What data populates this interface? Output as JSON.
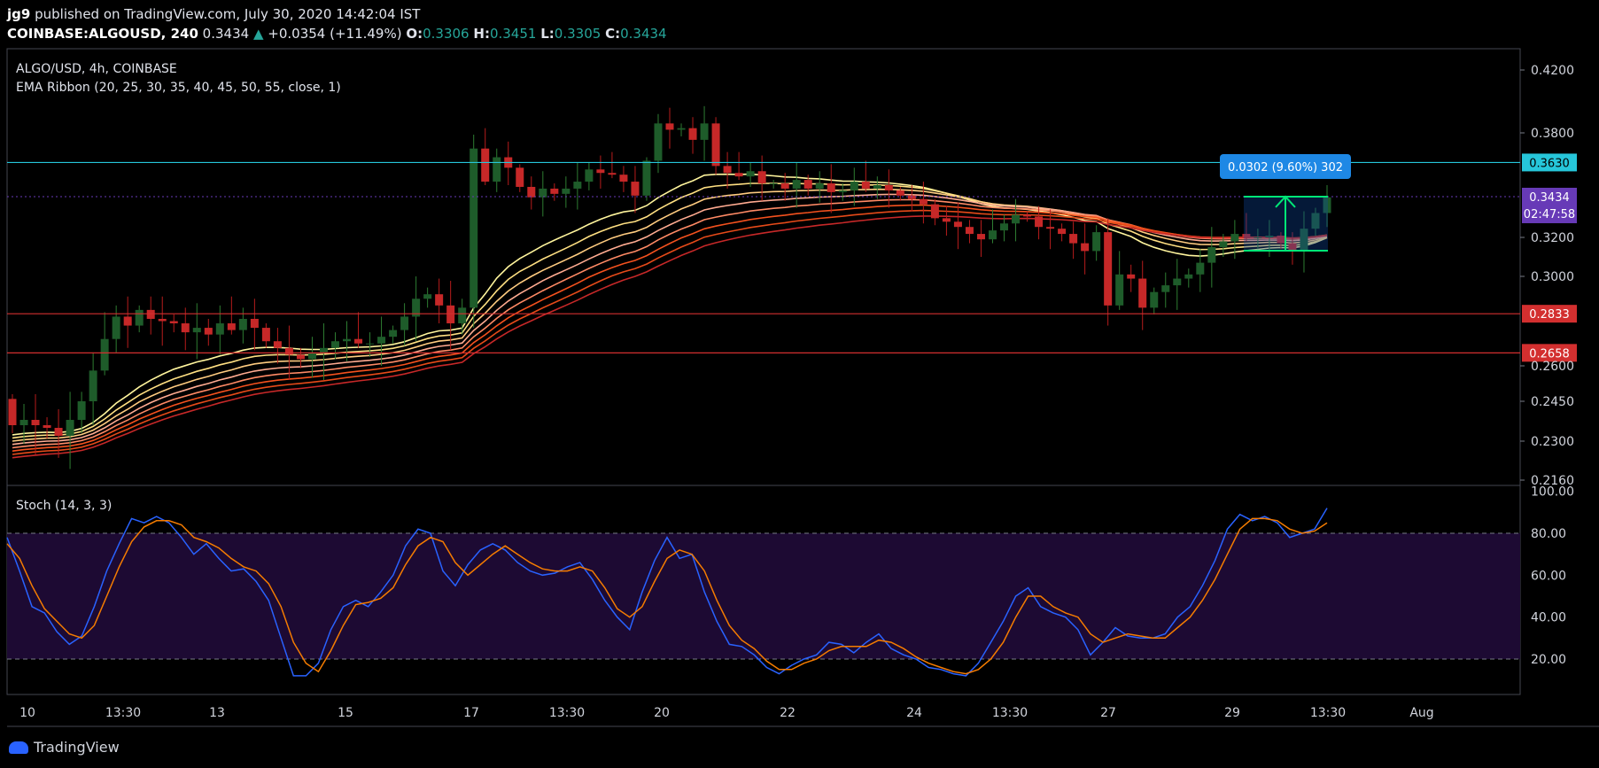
{
  "header": {
    "author": "jg9",
    "published_text": "published on TradingView.com, July 30, 2020 14:42:04 IST",
    "symbol": "COINBASE:ALGOUSD, 240",
    "last": "0.3434",
    "change": "+0.0354 (+11.49%)",
    "o_label": "O:",
    "o": "0.3306",
    "h_label": "H:",
    "h": "0.3451",
    "l_label": "L:",
    "l": "0.3305",
    "c_label": "C:",
    "c": "0.3434"
  },
  "main_pane": {
    "title": "ALGO/USD, 4h, COINBASE",
    "indicator": "EMA Ribbon (20, 25, 30, 35, 40, 45, 50, 55, close, 1)"
  },
  "stoch_pane": {
    "title": "Stoch (14, 3, 3)"
  },
  "measure_label": "0.0302 (9.60%) 302",
  "countdown": "02:47:58",
  "footer": {
    "brand": "TradingView"
  },
  "colors": {
    "up": "#26a69a",
    "candle_up": "#1e5c2a",
    "candle_down": "#c62828",
    "cyan_line": "#26c6da",
    "red_line": "#d32f2f",
    "current_price": "#673ab7",
    "stoch_k": "#2962ff",
    "stoch_d": "#f57c00",
    "stoch_band": "#1d0a33"
  },
  "chart_data": [
    {
      "type": "candlestick",
      "title": "ALGO/USD, 4h, COINBASE",
      "y_ticks": [
        "0.4200",
        "0.3800",
        "0.3200",
        "0.3000",
        "0.2600",
        "0.2450",
        "0.2300",
        "0.2160"
      ],
      "x_ticks": [
        "10",
        "13:30",
        "13",
        "15",
        "17",
        "13:30",
        "20",
        "22",
        "24",
        "13:30",
        "27",
        "29",
        "13:30",
        "Aug"
      ],
      "horizontal_levels": [
        {
          "value": 0.363,
          "label": "0.3630",
          "color": "#26c6da"
        },
        {
          "value": 0.2833,
          "label": "0.2833",
          "color": "#d32f2f"
        },
        {
          "value": 0.2658,
          "label": "0.2658",
          "color": "#d32f2f"
        }
      ],
      "current_price": {
        "value": 0.3434,
        "label": "0.3434"
      },
      "ema_ribbon": {
        "periods": [
          20,
          25,
          30,
          35,
          40,
          45,
          50,
          55
        ]
      },
      "measurement": {
        "from": 0.3132,
        "to": 0.3434,
        "label": "0.0302 (9.60%) 302"
      },
      "closes": [
        0.236,
        0.238,
        0.236,
        0.235,
        0.232,
        0.238,
        0.245,
        0.258,
        0.272,
        0.282,
        0.278,
        0.285,
        0.281,
        0.28,
        0.279,
        0.275,
        0.277,
        0.274,
        0.279,
        0.276,
        0.281,
        0.277,
        0.271,
        0.268,
        0.265,
        0.263,
        0.266,
        0.268,
        0.271,
        0.272,
        0.27,
        0.27,
        0.273,
        0.276,
        0.282,
        0.29,
        0.292,
        0.287,
        0.279,
        0.286,
        0.371,
        0.352,
        0.366,
        0.36,
        0.349,
        0.343,
        0.348,
        0.345,
        0.348,
        0.352,
        0.359,
        0.357,
        0.356,
        0.352,
        0.344,
        0.364,
        0.386,
        0.382,
        0.383,
        0.376,
        0.386,
        0.361,
        0.357,
        0.355,
        0.358,
        0.351,
        0.351,
        0.348,
        0.353,
        0.348,
        0.351,
        0.346,
        0.347,
        0.352,
        0.348,
        0.35,
        0.347,
        0.344,
        0.342,
        0.339,
        0.331,
        0.329,
        0.326,
        0.322,
        0.319,
        0.324,
        0.328,
        0.333,
        0.332,
        0.326,
        0.325,
        0.322,
        0.317,
        0.313,
        0.323,
        0.287,
        0.301,
        0.299,
        0.286,
        0.293,
        0.296,
        0.299,
        0.301,
        0.307,
        0.315,
        0.318,
        0.322,
        0.32,
        0.32,
        0.321,
        0.317,
        0.313,
        0.325,
        0.334,
        0.343
      ]
    },
    {
      "type": "line",
      "title": "Stoch (14, 3, 3)",
      "y_ticks": [
        "100.00",
        "80.00",
        "60.00",
        "40.00",
        "20.00"
      ],
      "ylim": [
        0,
        100
      ],
      "band": [
        20,
        80
      ],
      "series": [
        {
          "name": "%K",
          "values": [
            78,
            62,
            45,
            42,
            33,
            27,
            31,
            45,
            62,
            75,
            87,
            85,
            88,
            85,
            78,
            70,
            75,
            68,
            62,
            63,
            57,
            48,
            30,
            12,
            12,
            18,
            34,
            45,
            48,
            45,
            52,
            60,
            74,
            82,
            80,
            62,
            55,
            65,
            72,
            75,
            72,
            66,
            62,
            60,
            61,
            64,
            66,
            58,
            48,
            40,
            34,
            52,
            67,
            78,
            68,
            70,
            52,
            38,
            27,
            26,
            22,
            16,
            13,
            17,
            20,
            22,
            28,
            27,
            23,
            28,
            32,
            25,
            22,
            20,
            16,
            15,
            13,
            12,
            18,
            28,
            38,
            50,
            54,
            45,
            42,
            40,
            34,
            22,
            28,
            35,
            31,
            30,
            30,
            32,
            40,
            45,
            55,
            67,
            82,
            89,
            86,
            88,
            85,
            78,
            80,
            82,
            92
          ]
        },
        {
          "name": "%D",
          "values": [
            75,
            68,
            55,
            44,
            38,
            32,
            30,
            36,
            50,
            64,
            76,
            83,
            86,
            86,
            84,
            78,
            76,
            73,
            68,
            64,
            62,
            56,
            45,
            28,
            18,
            14,
            24,
            36,
            46,
            47,
            49,
            54,
            65,
            74,
            78,
            76,
            66,
            60,
            65,
            70,
            74,
            70,
            66,
            63,
            62,
            62,
            64,
            62,
            54,
            44,
            40,
            45,
            57,
            68,
            72,
            70,
            62,
            48,
            36,
            29,
            25,
            19,
            15,
            15,
            18,
            20,
            24,
            26,
            26,
            26,
            29,
            28,
            25,
            21,
            18,
            16,
            14,
            13,
            15,
            20,
            28,
            40,
            50,
            50,
            45,
            42,
            40,
            32,
            28,
            30,
            32,
            31,
            30,
            30,
            35,
            40,
            48,
            58,
            70,
            82,
            87,
            87,
            86,
            82,
            80,
            81,
            85
          ]
        }
      ]
    }
  ]
}
